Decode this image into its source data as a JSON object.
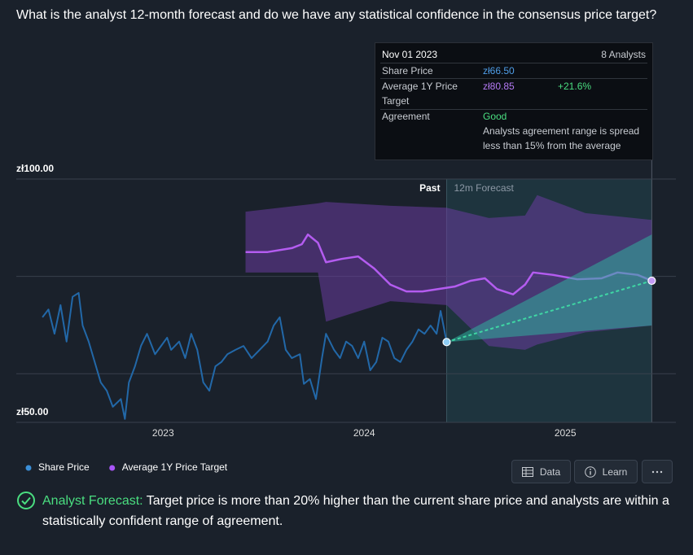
{
  "question": "What is the analyst 12-month forecast and do we have any statistical confidence in the consensus price target?",
  "tooltip": {
    "date": "Nov 01 2023",
    "analysts": "8 Analysts",
    "share_price": {
      "label": "Share Price",
      "value": "zł66.50"
    },
    "target": {
      "label": "Average 1Y Price Target",
      "value": "zł80.85",
      "change": "+21.6%"
    },
    "agreement": {
      "label": "Agreement",
      "value": "Good",
      "note": "Analysts agreement range is spread less than 15% from the average"
    }
  },
  "chart_data": {
    "type": "line",
    "xlim": [
      2022.27,
      2025.55
    ],
    "xticks": [
      2023,
      2024,
      2025
    ],
    "ylim": [
      50,
      100
    ],
    "yticks": [
      {
        "value": 100,
        "label": "zł100.00"
      },
      {
        "value": 50,
        "label": "zł50.00"
      }
    ],
    "ygrid": [
      80,
      60
    ],
    "forecast_region": {
      "x": [
        2024.41,
        2025.43
      ],
      "color": "#1f3944",
      "past_label": "Past",
      "forecast_label": "12m Forecast"
    },
    "series": [
      {
        "name": "Share Price",
        "color": "#2268a8",
        "legend_color": "#3b8fd8",
        "x": [
          2022.4,
          2022.43,
          2022.46,
          2022.49,
          2022.52,
          2022.55,
          2022.58,
          2022.6,
          2022.63,
          2022.66,
          2022.69,
          2022.72,
          2022.75,
          2022.79,
          2022.81,
          2022.83,
          2022.86,
          2022.89,
          2022.92,
          2022.96,
          2022.99,
          2023.02,
          2023.04,
          2023.08,
          2023.11,
          2023.14,
          2023.17,
          2023.2,
          2023.23,
          2023.26,
          2023.29,
          2023.32,
          2023.36,
          2023.4,
          2023.44,
          2023.48,
          2023.52,
          2023.55,
          2023.58,
          2023.61,
          2023.64,
          2023.68,
          2023.7,
          2023.73,
          2023.76,
          2023.79,
          2023.81,
          2023.85,
          2023.88,
          2023.91,
          2023.94,
          2023.97,
          2024.0,
          2024.03,
          2024.06,
          2024.09,
          2024.12,
          2024.15,
          2024.18,
          2024.21,
          2024.24,
          2024.27,
          2024.3,
          2024.33,
          2024.36,
          2024.38,
          2024.41
        ],
        "values": [
          71.6,
          73.2,
          68.2,
          74.1,
          66.6,
          75.8,
          76.6,
          69.9,
          66.6,
          62.4,
          58.2,
          56.5,
          53.2,
          54.8,
          50.7,
          58.2,
          61.5,
          65.7,
          68.2,
          64.0,
          65.7,
          67.4,
          64.9,
          66.6,
          63.2,
          68.2,
          64.9,
          58.2,
          56.5,
          61.5,
          62.4,
          64.0,
          64.9,
          65.7,
          63.2,
          64.9,
          66.6,
          69.9,
          71.6,
          64.9,
          63.2,
          64.0,
          57.9,
          58.9,
          54.8,
          63.2,
          68.2,
          64.9,
          63.2,
          66.6,
          65.7,
          63.2,
          66.6,
          60.7,
          62.4,
          67.4,
          66.6,
          63.2,
          62.4,
          64.9,
          66.6,
          69.1,
          68.2,
          69.9,
          68.2,
          72.9,
          66.5
        ]
      },
      {
        "name": "Average 1Y Price Target",
        "color": "#b45cf0",
        "legend_color": "#a855f7",
        "x": [
          2023.41,
          2023.52,
          2023.64,
          2023.69,
          2023.72,
          2023.77,
          2023.81,
          2023.89,
          2023.97,
          2024.05,
          2024.13,
          2024.21,
          2024.29,
          2024.37,
          2024.45,
          2024.53,
          2024.6,
          2024.66,
          2024.74,
          2024.8,
          2024.84,
          2024.94,
          2025.06,
          2025.18,
          2025.26,
          2025.36,
          2025.43
        ],
        "values": [
          85.0,
          85.0,
          85.8,
          86.6,
          88.6,
          86.9,
          82.9,
          83.6,
          84.1,
          81.6,
          78.3,
          76.9,
          76.9,
          77.4,
          77.9,
          79.1,
          79.6,
          77.4,
          76.3,
          78.3,
          80.8,
          80.3,
          79.4,
          79.6,
          80.8,
          80.3,
          79.1
        ]
      }
    ],
    "target_range": {
      "color": "#6a3d9e",
      "x": [
        2023.41,
        2023.77,
        2023.81,
        2024.13,
        2024.41,
        2024.62,
        2024.8,
        2024.86,
        2025.1,
        2025.43
      ],
      "high": [
        93.3,
        95.0,
        95.3,
        94.5,
        94.1,
        92.0,
        92.5,
        96.7,
        93.0,
        91.6
      ],
      "low": [
        80.8,
        80.8,
        70.7,
        74.9,
        74.1,
        65.7,
        64.9,
        66.0,
        68.5,
        69.9
      ]
    },
    "forecast_range": {
      "color": "#2fae9c",
      "x": [
        2024.41,
        2025.43
      ],
      "high": [
        66.5,
        88.6
      ],
      "low": [
        66.5,
        69.9
      ]
    }
  },
  "buttons": [
    "Data",
    "Learn"
  ],
  "footer": {
    "lead": "Analyst Forecast:",
    "text": "Target price is more than 20% higher than the current share price and analysts are within a statistically confident range of agreement."
  }
}
